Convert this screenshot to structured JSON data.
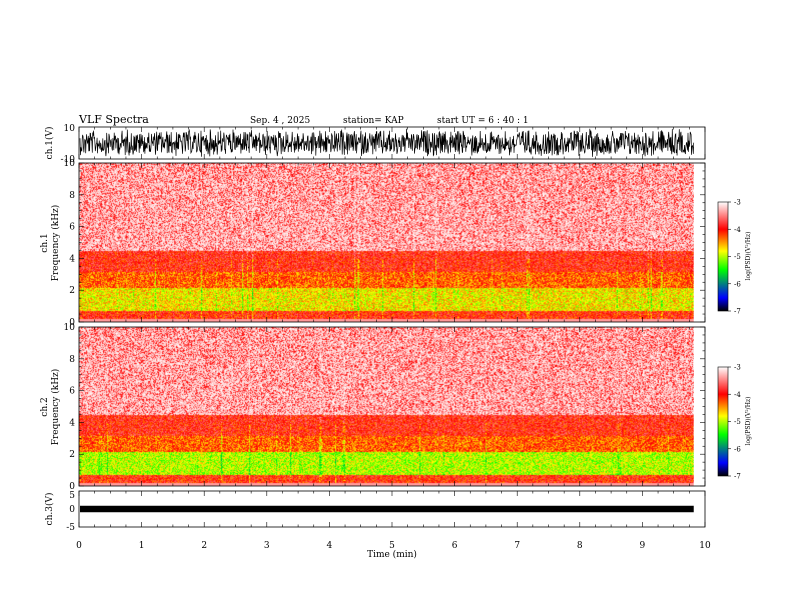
{
  "header": {
    "title": "VLF Spectra",
    "date": "Sep. 4 , 2025",
    "station": "station= KAP",
    "start_ut": "start  UT =   6 : 40 : 1"
  },
  "chart_data": {
    "type": "heatmap",
    "title": "VLF Spectra",
    "xlabel": "Time (min)",
    "xlim": [
      0,
      10
    ],
    "x_ticks": [
      "0",
      "1",
      "2",
      "3",
      "4",
      "5",
      "6",
      "7",
      "8",
      "9",
      "10"
    ],
    "data_end_min": 9.82,
    "panels": [
      {
        "name": "ch1-waveform",
        "type": "line",
        "ylabel": "ch.1(V)",
        "ylim": [
          -10,
          10
        ],
        "y_ticks": [
          "10",
          "-10"
        ]
      },
      {
        "name": "ch1-spectrogram",
        "type": "heatmap",
        "ylabel_line1": "ch.1",
        "ylabel_line2": "Frequency (kHz)",
        "ylim_khz": [
          0,
          10
        ],
        "y_ticks": [
          "0",
          "2",
          "4",
          "6",
          "8",
          "10"
        ],
        "colorbar": {
          "label": "log(PSD)(V²/Hz)",
          "range": [
            -7,
            -3
          ],
          "ticks": [
            "-3",
            "-4",
            "-5",
            "-6",
            "-7"
          ],
          "colors": [
            "#000000",
            "#0000ff",
            "#00ff00",
            "#ffff00",
            "#ff0000",
            "#ffffff"
          ]
        }
      },
      {
        "name": "ch2-spectrogram",
        "type": "heatmap",
        "ylabel_line1": "ch.2",
        "ylabel_line2": "Frequency (kHz)",
        "ylim_khz": [
          0,
          10
        ],
        "y_ticks": [
          "0",
          "2",
          "4",
          "6",
          "8",
          "10"
        ],
        "colorbar": {
          "label": "log(PSD)(V²/Hz)",
          "range": [
            -7,
            -3
          ],
          "ticks": [
            "-3",
            "-4",
            "-5",
            "-6",
            "-7"
          ],
          "colors": [
            "#000000",
            "#0000ff",
            "#00ff00",
            "#ffff00",
            "#ff0000",
            "#ffffff"
          ]
        }
      },
      {
        "name": "ch3-waveform",
        "type": "line",
        "ylabel": "ch.3(V)",
        "ylim": [
          -5,
          5
        ],
        "y_ticks": [
          "5",
          "0",
          "-5"
        ]
      }
    ]
  }
}
